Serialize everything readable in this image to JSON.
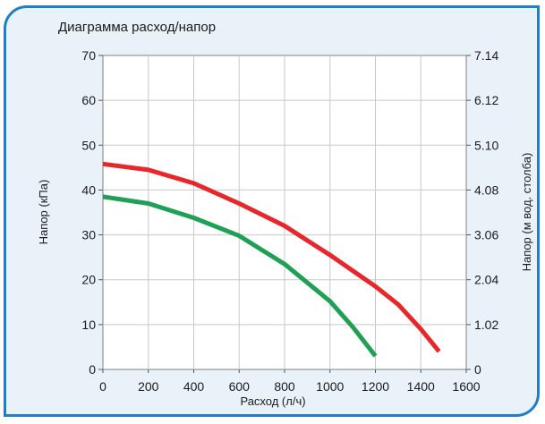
{
  "chart_data": {
    "type": "line",
    "title": "Диаграмма расход/напор",
    "xlabel": "Расход (л/ч)",
    "ylabel": "Напор (кПа)",
    "y2label": "Напор (м вод. столба)",
    "xlim": [
      0,
      1600
    ],
    "ylim": [
      0,
      70
    ],
    "xticks": [
      0,
      200,
      400,
      600,
      800,
      1000,
      1200,
      1400,
      1600
    ],
    "yticks": [
      0,
      10,
      20,
      30,
      40,
      50,
      60,
      70
    ],
    "y2ticks": [
      {
        "value": 0,
        "label": "0"
      },
      {
        "value": 10,
        "label": "1.02"
      },
      {
        "value": 20,
        "label": "2.04"
      },
      {
        "value": 30,
        "label": "3.06"
      },
      {
        "value": 40,
        "label": "4.08"
      },
      {
        "value": 50,
        "label": "5.10"
      },
      {
        "value": 60,
        "label": "6.12"
      },
      {
        "value": 70,
        "label": "7.14"
      }
    ],
    "grid": true,
    "series": [
      {
        "color": "#e8262b",
        "x": [
          0,
          200,
          400,
          600,
          800,
          1000,
          1200,
          1300,
          1400,
          1480
        ],
        "y": [
          45.8,
          44.5,
          41.5,
          37.0,
          32.0,
          25.5,
          18.5,
          14.5,
          9.0,
          4.0
        ]
      },
      {
        "color": "#1fa155",
        "x": [
          0,
          200,
          400,
          600,
          800,
          1000,
          1100,
          1200
        ],
        "y": [
          38.5,
          37.0,
          33.8,
          29.8,
          23.5,
          15.2,
          9.5,
          3.0
        ]
      }
    ]
  }
}
